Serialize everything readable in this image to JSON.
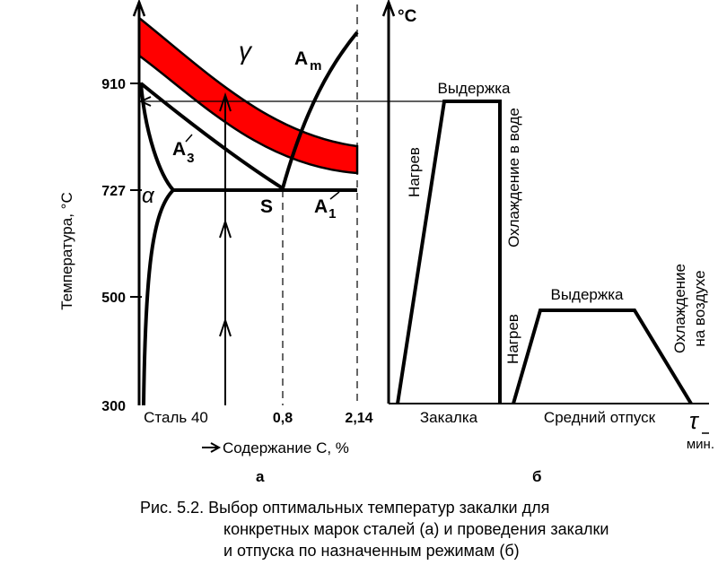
{
  "diagram_a": {
    "y_axis_label": "Температура, °С",
    "y_ticks": [
      "910",
      "727",
      "500",
      "300"
    ],
    "x_ticks": [
      "Сталь 40",
      "0,8",
      "2,14"
    ],
    "x_axis_label": "Содержание С, %",
    "phase_gamma": "γ",
    "phase_alpha": "α",
    "line_am": "A",
    "line_am_sub": "m",
    "line_a3": "A",
    "line_a3_sub": "3",
    "line_a1": "A",
    "line_a1_sub": "1",
    "point_s": "S",
    "panel_letter": "а",
    "band_color": "#ff0000"
  },
  "diagram_b": {
    "y_axis_label": "°С",
    "heating_1": "Нагрев",
    "holding_1": "Выдержка",
    "cooling_1": "Охлаждение в воде",
    "heating_2": "Нагрев",
    "holding_2": "Выдержка",
    "cooling_2_line1": "Охлаждение",
    "cooling_2_line2": "на воздухе",
    "stage_1": "Закалка",
    "stage_2": "Средний отпуск",
    "x_axis_symbol": "τ",
    "x_axis_unit": "мин.",
    "panel_letter": "б"
  },
  "caption": {
    "line1": "Рис. 5.2. Выбор оптимальных температур закалки для",
    "line2": "конкретных марок сталей (а) и проведения закалки",
    "line3": "и отпуска по назначенным режимам (б)"
  }
}
